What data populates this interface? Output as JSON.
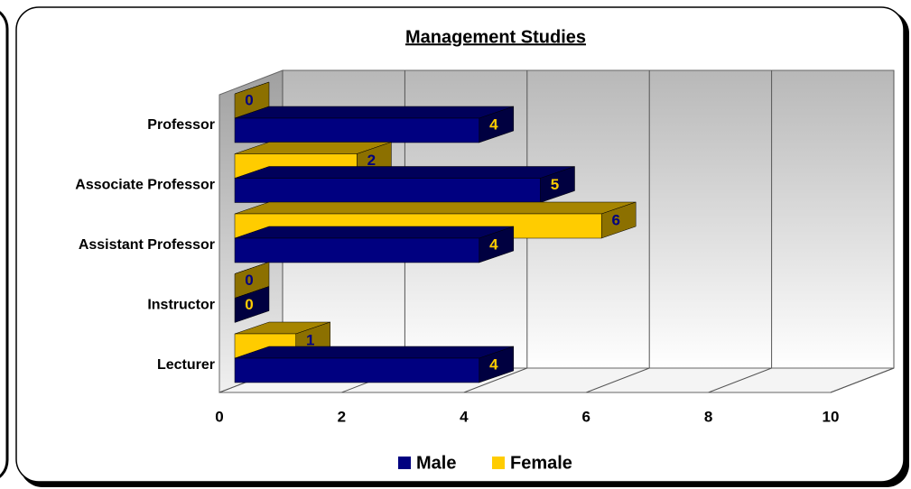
{
  "chart_data": {
    "type": "bar",
    "orientation": "horizontal",
    "title": "Management Studies",
    "categories": [
      "Professor",
      "Associate Professor",
      "Assistant Professor",
      "Instructor",
      "Lecturer"
    ],
    "series": [
      {
        "name": "Male",
        "color": "#000080",
        "values": [
          4,
          5,
          4,
          0,
          4
        ]
      },
      {
        "name": "Female",
        "color": "#ffcc00",
        "values": [
          0,
          2,
          6,
          0,
          1
        ]
      }
    ],
    "xlim": [
      0,
      10
    ],
    "xticks": [
      0,
      2,
      4,
      6,
      8,
      10
    ],
    "grid": true,
    "legend": "bottom"
  }
}
